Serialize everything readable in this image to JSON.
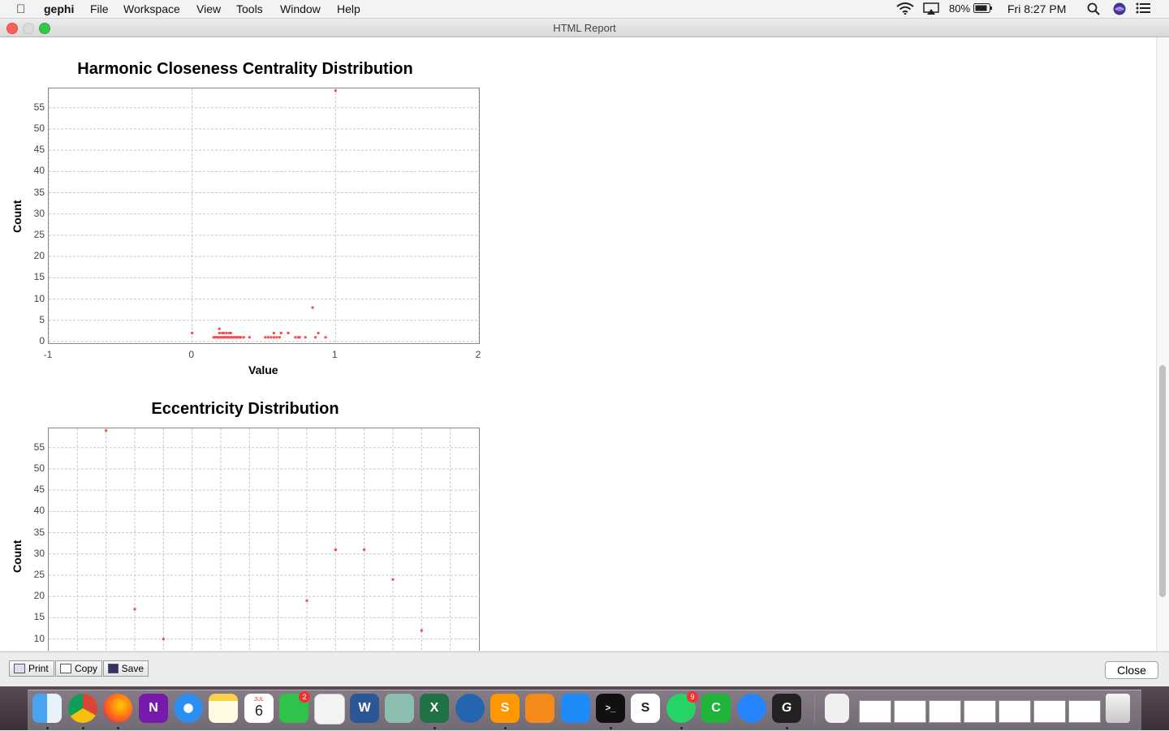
{
  "menubar": {
    "app_name": "gephi",
    "items": [
      "File",
      "Workspace",
      "View",
      "Tools",
      "Window",
      "Help"
    ],
    "battery": "80%",
    "clock": "Fri 8:27 PM"
  },
  "window": {
    "title": "HTML Report"
  },
  "charts": [
    {
      "title": "Harmonic Closeness Centrality Distribution",
      "xlabel": "Value",
      "ylabel": "Count"
    },
    {
      "title": "Eccentricity Distribution",
      "xlabel": "",
      "ylabel": "Count"
    }
  ],
  "chart_data": [
    {
      "type": "scatter",
      "title": "Harmonic Closeness Centrality Distribution",
      "xlabel": "Value",
      "ylabel": "Count",
      "xlim": [
        -1,
        2
      ],
      "ylim": [
        0,
        58
      ],
      "xticks": [
        -1,
        0,
        1,
        2
      ],
      "yticks": [
        0,
        5,
        10,
        15,
        20,
        25,
        30,
        35,
        40,
        45,
        50,
        55
      ],
      "grid": true,
      "color": "#f05050",
      "points": [
        [
          0.0,
          2
        ],
        [
          1.0,
          59
        ],
        [
          0.84,
          8
        ],
        [
          0.19,
          3
        ],
        [
          0.15,
          1
        ],
        [
          0.16,
          1
        ],
        [
          0.17,
          1
        ],
        [
          0.18,
          1
        ],
        [
          0.19,
          1
        ],
        [
          0.2,
          1
        ],
        [
          0.21,
          1
        ],
        [
          0.22,
          1
        ],
        [
          0.23,
          1
        ],
        [
          0.24,
          1
        ],
        [
          0.25,
          1
        ],
        [
          0.26,
          1
        ],
        [
          0.27,
          1
        ],
        [
          0.28,
          1
        ],
        [
          0.29,
          1
        ],
        [
          0.3,
          1
        ],
        [
          0.31,
          1
        ],
        [
          0.32,
          1
        ],
        [
          0.33,
          1
        ],
        [
          0.34,
          1
        ],
        [
          0.36,
          1
        ],
        [
          0.4,
          1
        ],
        [
          0.19,
          2
        ],
        [
          0.21,
          2
        ],
        [
          0.22,
          2
        ],
        [
          0.24,
          2
        ],
        [
          0.26,
          2
        ],
        [
          0.27,
          2
        ],
        [
          0.51,
          1
        ],
        [
          0.53,
          1
        ],
        [
          0.55,
          1
        ],
        [
          0.57,
          1
        ],
        [
          0.59,
          1
        ],
        [
          0.61,
          1
        ],
        [
          0.57,
          2
        ],
        [
          0.62,
          2
        ],
        [
          0.67,
          2
        ],
        [
          0.72,
          1
        ],
        [
          0.74,
          1
        ],
        [
          0.75,
          1
        ],
        [
          0.79,
          1
        ],
        [
          0.86,
          1
        ],
        [
          0.93,
          1
        ],
        [
          0.88,
          2
        ]
      ]
    },
    {
      "type": "scatter",
      "title": "Eccentricity Distribution",
      "xlabel": "",
      "ylabel": "Count",
      "xlim": [
        0,
        15
      ],
      "ylim": [
        0,
        58
      ],
      "yticks": [
        10,
        15,
        20,
        25,
        30,
        35,
        40,
        45,
        50,
        55
      ],
      "grid": true,
      "color": "#f05050",
      "points": [
        [
          2,
          59
        ],
        [
          3,
          17
        ],
        [
          4,
          10
        ],
        [
          9,
          19
        ],
        [
          10,
          31
        ],
        [
          11,
          31
        ],
        [
          12,
          24
        ],
        [
          13,
          12
        ]
      ]
    }
  ],
  "bottom": {
    "print_label": "Print",
    "copy_label": "Copy",
    "save_label": "Save",
    "close_label": "Close"
  },
  "dock": {
    "badges": {
      "facetime": "2",
      "whatsapp": "9"
    },
    "calendar_month": "JUL",
    "calendar_day": "6"
  }
}
